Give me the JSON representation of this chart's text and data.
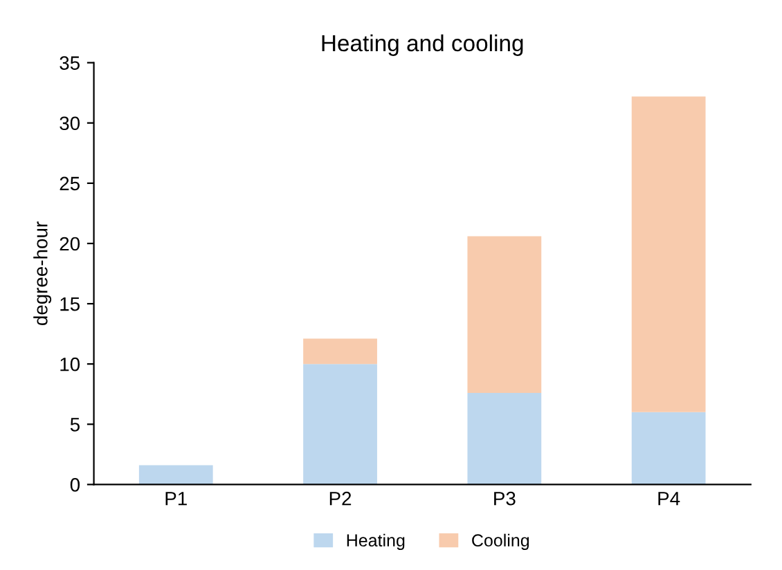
{
  "chart_data": {
    "type": "bar",
    "title": "Heating and cooling",
    "ylabel": "degree-hour",
    "categories": [
      "P1",
      "P2",
      "P3",
      "P4"
    ],
    "stacked": true,
    "series": [
      {
        "name": "Heating",
        "color": "#bdd7ee",
        "values": [
          1.6,
          10.0,
          7.6,
          6.0
        ]
      },
      {
        "name": "Cooling",
        "color": "#f8cbad",
        "values": [
          0,
          2.1,
          13.0,
          26.2
        ]
      }
    ],
    "ylim": [
      0,
      35
    ],
    "yticks": [
      0,
      5,
      10,
      15,
      20,
      25,
      30,
      35
    ],
    "grid": false,
    "legend": "bottom"
  }
}
